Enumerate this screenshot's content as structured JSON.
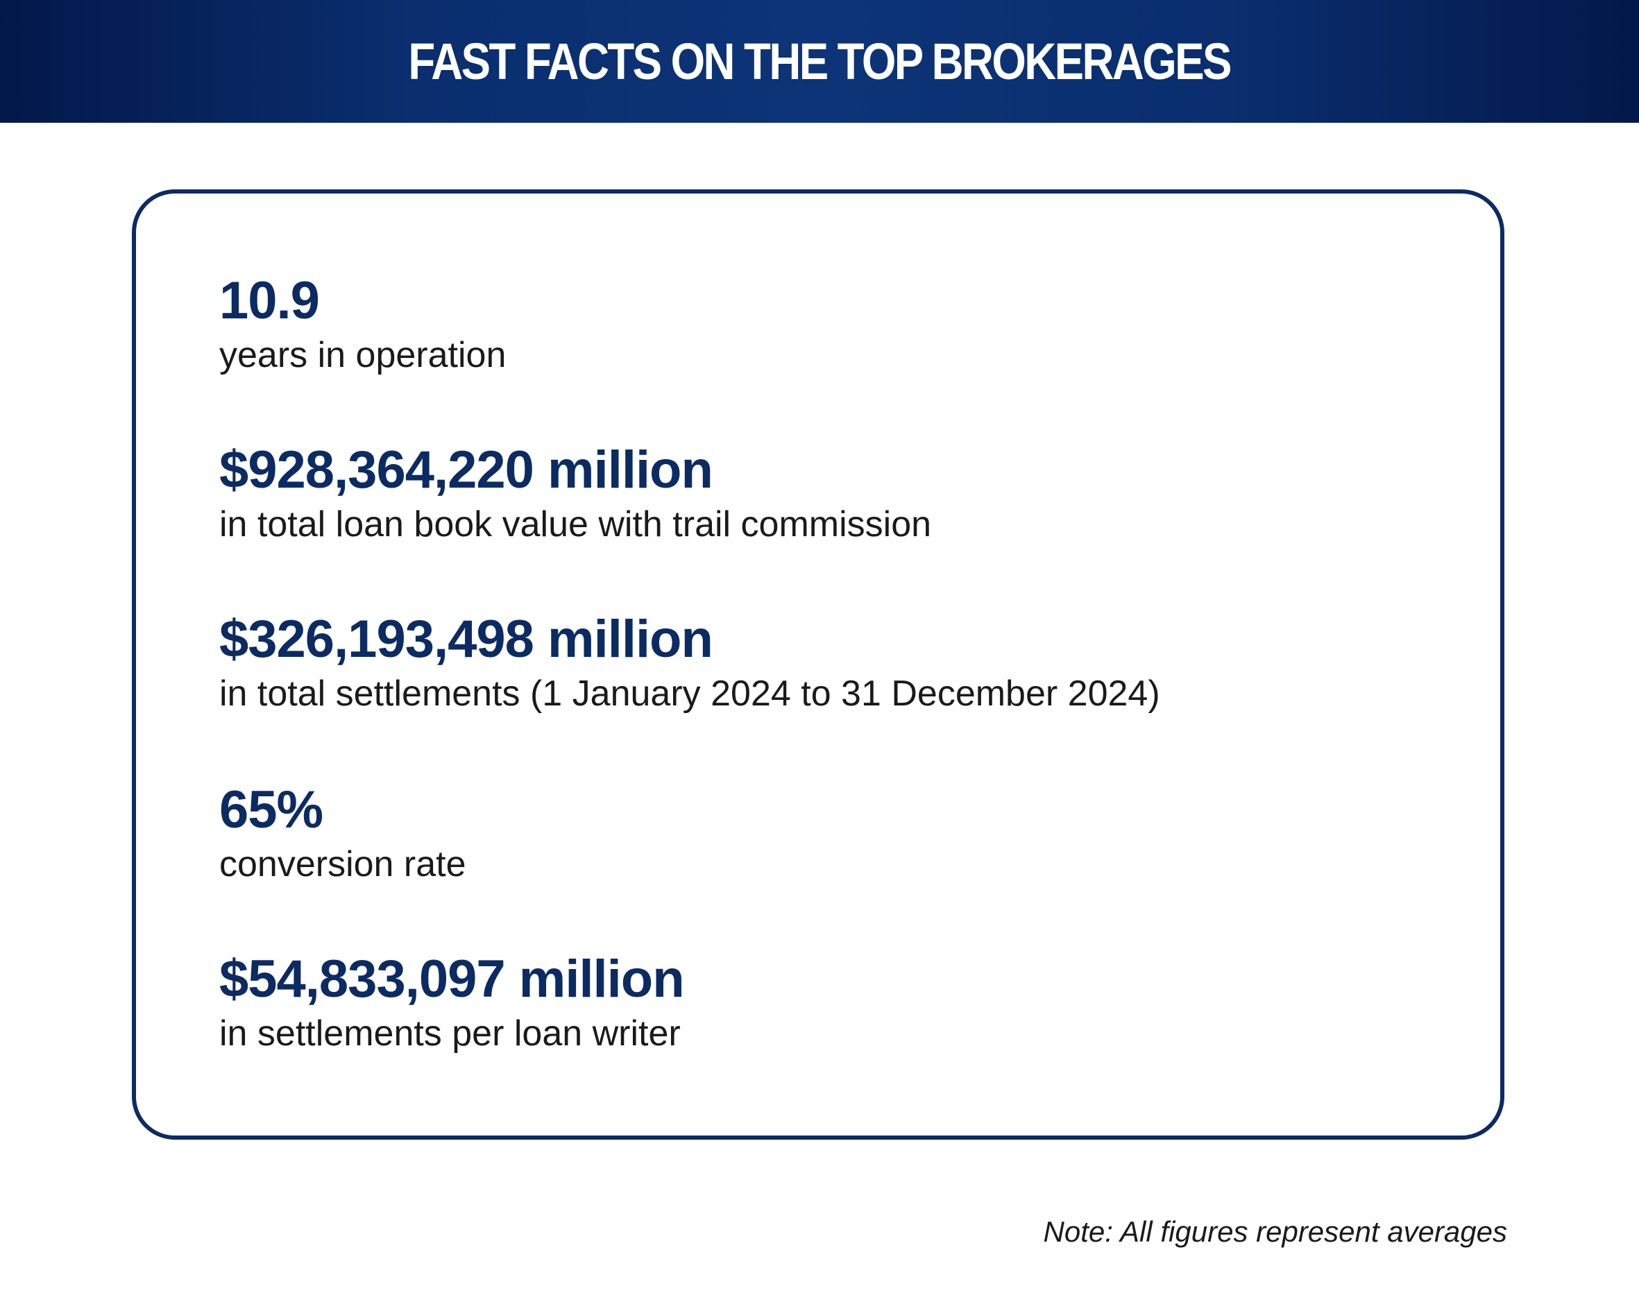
{
  "header": {
    "title": "FAST FACTS ON THE TOP BROKERAGES"
  },
  "facts": [
    {
      "value": "10.9",
      "label": "years in operation"
    },
    {
      "value": "$928,364,220 million",
      "label": "in total loan book value with trail commission"
    },
    {
      "value": "$326,193,498 million",
      "label": "in total settlements (1 January 2024 to 31 December 2024)"
    },
    {
      "value": "65%",
      "label": "conversion rate"
    },
    {
      "value": "$54,833,097 million",
      "label": "in settlements per loan writer"
    }
  ],
  "note": "Note: All figures represent averages",
  "colors": {
    "navy": "#0c2b63",
    "banner_dark": "#03184a",
    "banner_mid": "#0d3478",
    "text": "#1a1a1a"
  }
}
